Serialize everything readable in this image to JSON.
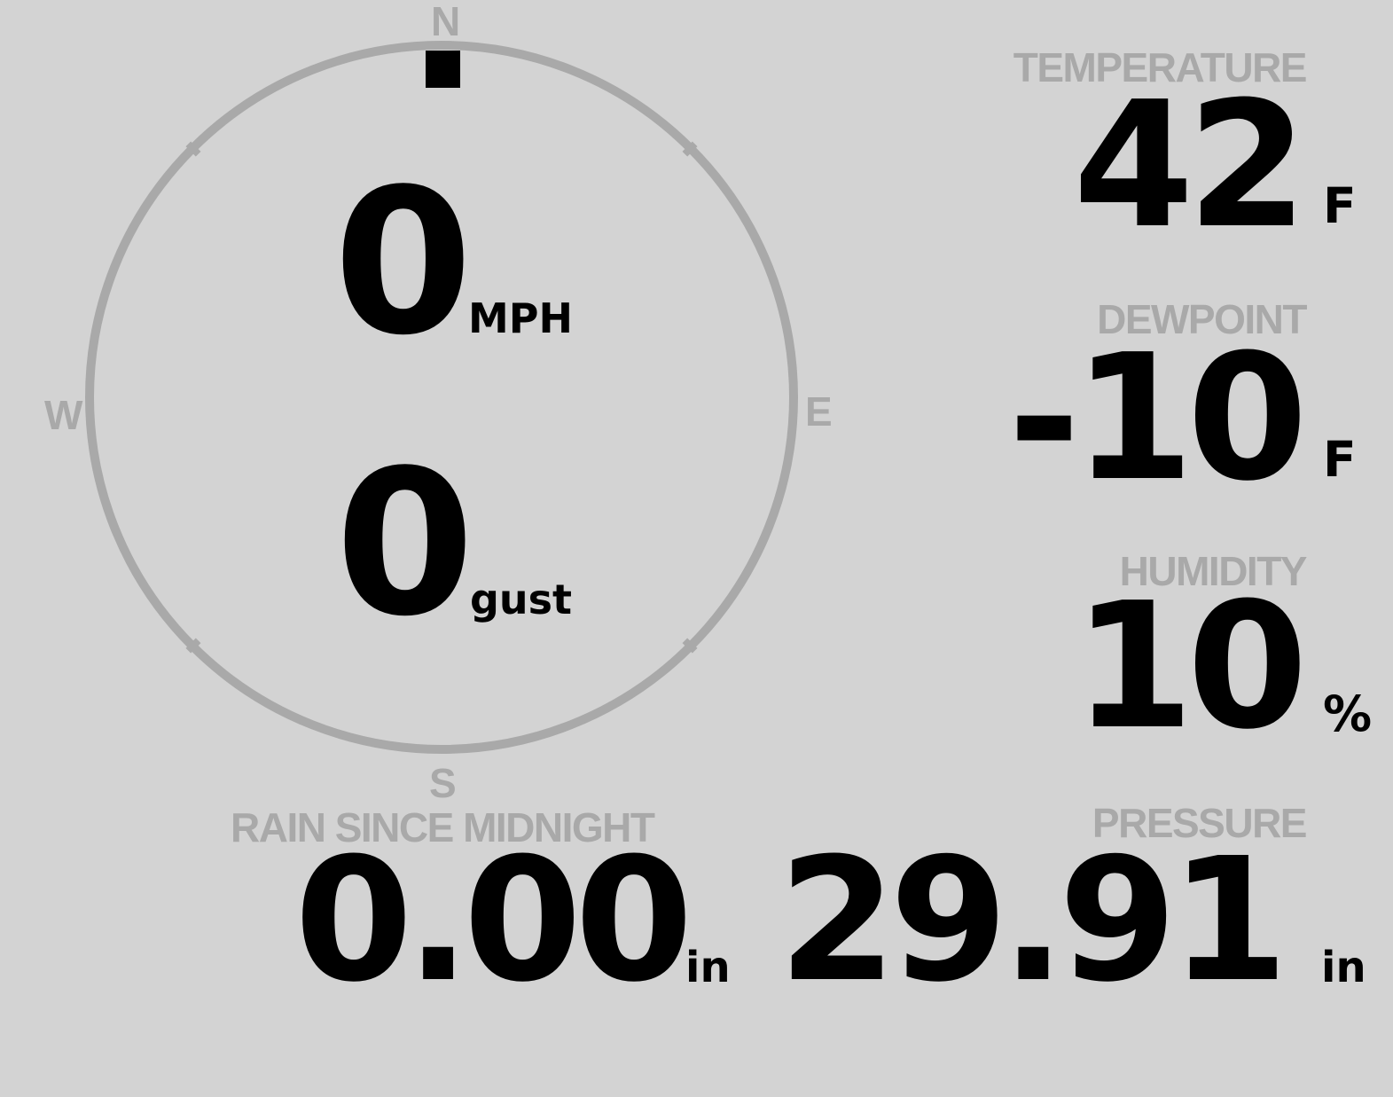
{
  "colors": {
    "background": "#d3d3d3",
    "label": "#a9a9a9",
    "value": "#000000",
    "compass_ring": "#a9a9a9",
    "wind_indicator": "#000000"
  },
  "wind": {
    "direction_degrees": 0,
    "speed": "0",
    "speed_unit": "MPH",
    "gust": "0",
    "gust_unit": "gust",
    "compass": {
      "n": "N",
      "e": "E",
      "s": "S",
      "w": "W"
    }
  },
  "temperature": {
    "label": "TEMPERATURE",
    "value": "42",
    "unit": "F"
  },
  "dewpoint": {
    "label": "DEWPOINT",
    "value": "-10",
    "unit": "F"
  },
  "humidity": {
    "label": "HUMIDITY",
    "value": "10",
    "unit": "%"
  },
  "rain": {
    "label": "RAIN SINCE MIDNIGHT",
    "value": "0.00",
    "unit": "in"
  },
  "pressure": {
    "label": "PRESSURE",
    "value": "29.91",
    "unit": "in"
  }
}
